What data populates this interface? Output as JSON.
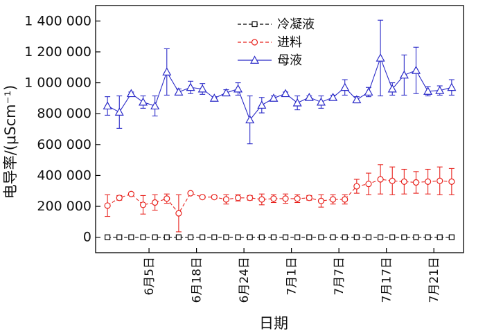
{
  "chart_data": {
    "type": "line",
    "xlabel": "日期",
    "ylabel": "电导率/(μScm⁻¹)",
    "ylim": [
      -100000,
      1500000
    ],
    "yticks": [
      0,
      200000,
      400000,
      600000,
      800000,
      1000000,
      1200000,
      1400000
    ],
    "ytick_labels": [
      "0",
      "200 000",
      "400 000",
      "600 000",
      "800 000",
      "1 000 000",
      "1 200 000",
      "1 400 000"
    ],
    "x_tick_labels": [
      "6月5日",
      "6月18日",
      "6月24日",
      "7月1日",
      "7月7日",
      "7月17日",
      "7月21日"
    ],
    "x_tick_positions": [
      3.5,
      7.5,
      11.5,
      15.5,
      19.5,
      23.5,
      27.5
    ],
    "xlim": [
      -1,
      30
    ],
    "grid": false,
    "legend_position": "top-center",
    "series": [
      {
        "name": "冷凝液",
        "color": "#000000",
        "marker": "square",
        "x": [
          0,
          1,
          2,
          3,
          4,
          5,
          6,
          7,
          8,
          9,
          10,
          11,
          12,
          13,
          14,
          15,
          16,
          17,
          18,
          19,
          20,
          21,
          22,
          23,
          24,
          25,
          26,
          27,
          28,
          29
        ],
        "values": [
          0,
          0,
          0,
          0,
          0,
          0,
          0,
          0,
          0,
          0,
          0,
          0,
          0,
          0,
          0,
          0,
          0,
          0,
          0,
          0,
          0,
          0,
          0,
          0,
          0,
          0,
          0,
          0,
          0,
          0
        ],
        "errors": [
          0,
          0,
          0,
          0,
          0,
          0,
          0,
          0,
          0,
          0,
          0,
          0,
          0,
          0,
          0,
          0,
          0,
          0,
          0,
          0,
          0,
          0,
          0,
          0,
          0,
          0,
          0,
          0,
          0,
          0
        ]
      },
      {
        "name": "进料",
        "color": "#e8231e",
        "marker": "circle",
        "x": [
          0,
          1,
          2,
          3,
          4,
          5,
          6,
          7,
          8,
          9,
          10,
          11,
          12,
          13,
          14,
          15,
          16,
          17,
          18,
          19,
          20,
          21,
          22,
          23,
          24,
          25,
          26,
          27,
          28,
          29
        ],
        "values": [
          205000,
          255000,
          280000,
          210000,
          225000,
          250000,
          155000,
          285000,
          260000,
          260000,
          245000,
          255000,
          255000,
          245000,
          250000,
          250000,
          250000,
          255000,
          235000,
          245000,
          245000,
          330000,
          345000,
          375000,
          365000,
          360000,
          355000,
          360000,
          365000,
          360000
        ],
        "errors": [
          70000,
          15000,
          8000,
          60000,
          50000,
          30000,
          120000,
          8000,
          10000,
          10000,
          30000,
          20000,
          15000,
          35000,
          25000,
          30000,
          25000,
          15000,
          40000,
          30000,
          30000,
          45000,
          70000,
          95000,
          90000,
          80000,
          70000,
          80000,
          90000,
          85000
        ]
      },
      {
        "name": "母液",
        "color": "#2a2ac8",
        "marker": "triangle",
        "x": [
          0,
          1,
          2,
          3,
          4,
          5,
          6,
          7,
          8,
          9,
          10,
          11,
          12,
          13,
          14,
          15,
          16,
          17,
          18,
          19,
          20,
          21,
          22,
          23,
          24,
          25,
          26,
          27,
          28,
          29
        ],
        "values": [
          850000,
          810000,
          930000,
          875000,
          850000,
          1070000,
          940000,
          970000,
          960000,
          900000,
          935000,
          960000,
          760000,
          855000,
          900000,
          930000,
          870000,
          905000,
          875000,
          905000,
          970000,
          890000,
          940000,
          1160000,
          960000,
          1050000,
          1080000,
          945000,
          950000,
          970000
        ],
        "errors": [
          60000,
          105000,
          10000,
          40000,
          65000,
          150000,
          20000,
          40000,
          35000,
          10000,
          20000,
          40000,
          155000,
          50000,
          15000,
          10000,
          45000,
          10000,
          40000,
          15000,
          50000,
          20000,
          30000,
          245000,
          40000,
          130000,
          150000,
          30000,
          30000,
          50000
        ]
      }
    ]
  }
}
